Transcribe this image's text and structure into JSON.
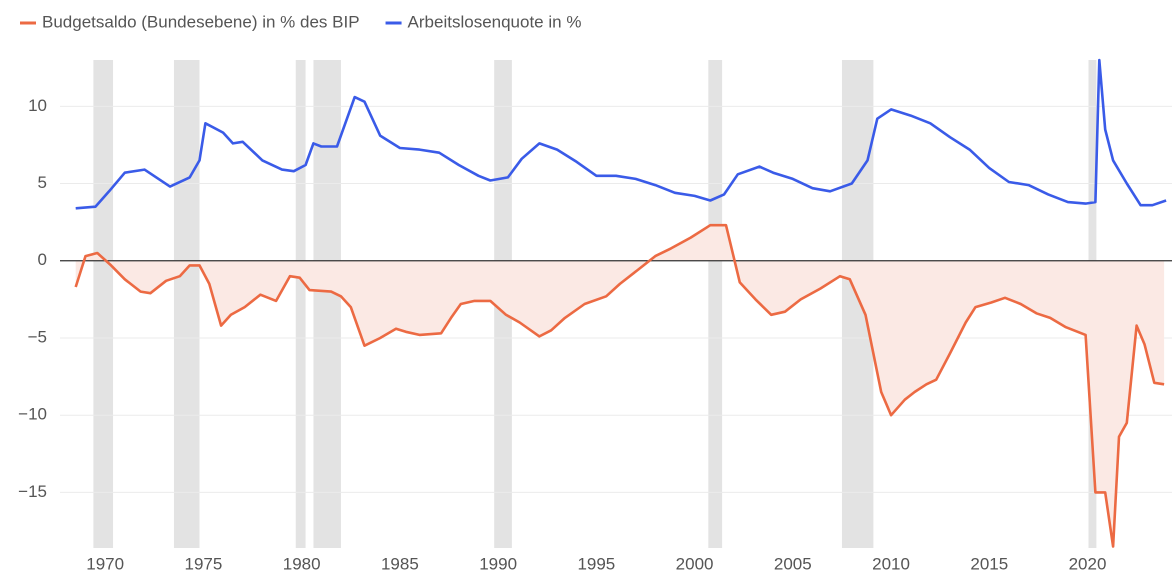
{
  "chart_data": {
    "type": "line",
    "series": [
      {
        "name": "Budgetsaldo (Bundesebene) in % des BIP",
        "color": "#ec6a43",
        "fill_to_zero": true,
        "fill_color": "#fbe9e4",
        "x": [
          1968.5,
          1969.0,
          1969.6,
          1970.3,
          1971.0,
          1971.8,
          1972.3,
          1973.1,
          1973.8,
          1974.3,
          1974.8,
          1975.3,
          1975.9,
          1976.4,
          1977.1,
          1977.9,
          1978.7,
          1979.4,
          1979.9,
          1980.4,
          1981.5,
          1982.0,
          1982.5,
          1983.2,
          1984.0,
          1984.8,
          1985.3,
          1986.0,
          1987.1,
          1987.6,
          1988.1,
          1988.8,
          1989.6,
          1990.4,
          1991.1,
          1992.1,
          1992.7,
          1993.4,
          1994.4,
          1995.5,
          1996.2,
          1997.2,
          1998.0,
          1998.8,
          1999.8,
          2000.8,
          2001.6,
          2002.3,
          2003.1,
          2003.9,
          2004.6,
          2005.4,
          2006.4,
          2007.4,
          2007.9,
          2008.7,
          2009.5,
          2010.0,
          2010.7,
          2011.2,
          2011.8,
          2012.3,
          2013.0,
          2013.8,
          2014.3,
          2015.1,
          2015.8,
          2016.6,
          2017.4,
          2018.1,
          2018.9,
          2019.9,
          2020.4,
          2020.9,
          2021.3,
          2021.6,
          2022.0,
          2022.5,
          2022.9,
          2023.4,
          2023.9
        ],
        "values": [
          -1.7,
          0.3,
          0.5,
          -0.3,
          -1.2,
          -2.0,
          -2.1,
          -1.3,
          -1.0,
          -0.3,
          -0.3,
          -1.5,
          -4.2,
          -3.5,
          -3.0,
          -2.2,
          -2.6,
          -1.0,
          -1.1,
          -1.9,
          -2.0,
          -2.3,
          -3.0,
          -5.5,
          -5.0,
          -4.4,
          -4.6,
          -4.8,
          -4.7,
          -3.7,
          -2.8,
          -2.6,
          -2.6,
          -3.5,
          -4.0,
          -4.9,
          -4.5,
          -3.7,
          -2.8,
          -2.3,
          -1.5,
          -0.5,
          0.3,
          0.8,
          1.5,
          2.3,
          2.3,
          -1.4,
          -2.5,
          -3.5,
          -3.3,
          -2.5,
          -1.8,
          -1.0,
          -1.2,
          -3.5,
          -8.5,
          -10.0,
          -9.0,
          -8.5,
          -8.0,
          -7.7,
          -6.0,
          -4.0,
          -3.0,
          -2.7,
          -2.4,
          -2.8,
          -3.4,
          -3.7,
          -4.3,
          -4.8,
          -15.0,
          -15.0,
          -18.5,
          -11.4,
          -10.5,
          -4.2,
          -5.4,
          -7.9,
          -8.0
        ]
      },
      {
        "name": "Arbeitslosenquote in %",
        "color": "#3a5be8",
        "x": [
          1968.5,
          1969.5,
          1970.2,
          1971.0,
          1972.0,
          1973.3,
          1974.3,
          1974.8,
          1975.1,
          1976.0,
          1976.5,
          1977.0,
          1978.0,
          1979.0,
          1979.6,
          1980.2,
          1980.6,
          1981.0,
          1981.8,
          1982.7,
          1983.2,
          1984.0,
          1985.0,
          1986.0,
          1987.0,
          1988.0,
          1989.0,
          1989.6,
          1990.5,
          1991.2,
          1992.1,
          1993.0,
          1994.0,
          1995.0,
          1996.0,
          1997.0,
          1998.0,
          1999.0,
          2000.0,
          2000.8,
          2001.5,
          2002.2,
          2003.3,
          2004.0,
          2005.0,
          2006.0,
          2006.9,
          2008.0,
          2008.8,
          2009.3,
          2010.0,
          2011.0,
          2012.0,
          2013.0,
          2014.0,
          2015.0,
          2016.0,
          2017.0,
          2018.0,
          2019.0,
          2019.9,
          2020.4,
          2020.6,
          2020.9,
          2021.3,
          2022.0,
          2022.7,
          2023.3,
          2024.0
        ],
        "values": [
          3.4,
          3.5,
          4.5,
          5.7,
          5.9,
          4.8,
          5.4,
          6.5,
          8.9,
          8.3,
          7.6,
          7.7,
          6.5,
          5.9,
          5.8,
          6.2,
          7.6,
          7.4,
          7.4,
          10.6,
          10.3,
          8.1,
          7.3,
          7.2,
          7.0,
          6.2,
          5.5,
          5.2,
          5.4,
          6.6,
          7.6,
          7.2,
          6.4,
          5.5,
          5.5,
          5.3,
          4.9,
          4.4,
          4.2,
          3.9,
          4.3,
          5.6,
          6.1,
          5.7,
          5.3,
          4.7,
          4.5,
          5.0,
          6.5,
          9.2,
          9.8,
          9.4,
          8.9,
          8.0,
          7.2,
          6.0,
          5.1,
          4.9,
          4.3,
          3.8,
          3.7,
          3.8,
          13.0,
          8.5,
          6.5,
          5.0,
          3.6,
          3.6,
          3.9
        ]
      }
    ],
    "shaded_ranges": [
      [
        1969.4,
        1970.4
      ],
      [
        1973.5,
        1974.8
      ],
      [
        1979.7,
        1980.2
      ],
      [
        1980.6,
        1982.0
      ],
      [
        1989.8,
        1990.7
      ],
      [
        2000.7,
        2001.4
      ],
      [
        2007.5,
        2009.1
      ],
      [
        2020.05,
        2020.45
      ]
    ],
    "xlim": [
      1967.7,
      2024.3
    ],
    "xticks": [
      1970,
      1975,
      1980,
      1985,
      1990,
      1995,
      2000,
      2005,
      2010,
      2015,
      2020
    ],
    "ylim": [
      -18.6,
      13
    ],
    "yticks": [
      10,
      5,
      0,
      {
        "value": -5,
        "label": "−5"
      },
      {
        "value": -10,
        "label": "−10"
      },
      {
        "value": -15,
        "label": "−15"
      }
    ],
    "grid": true,
    "legend": "top-left"
  }
}
